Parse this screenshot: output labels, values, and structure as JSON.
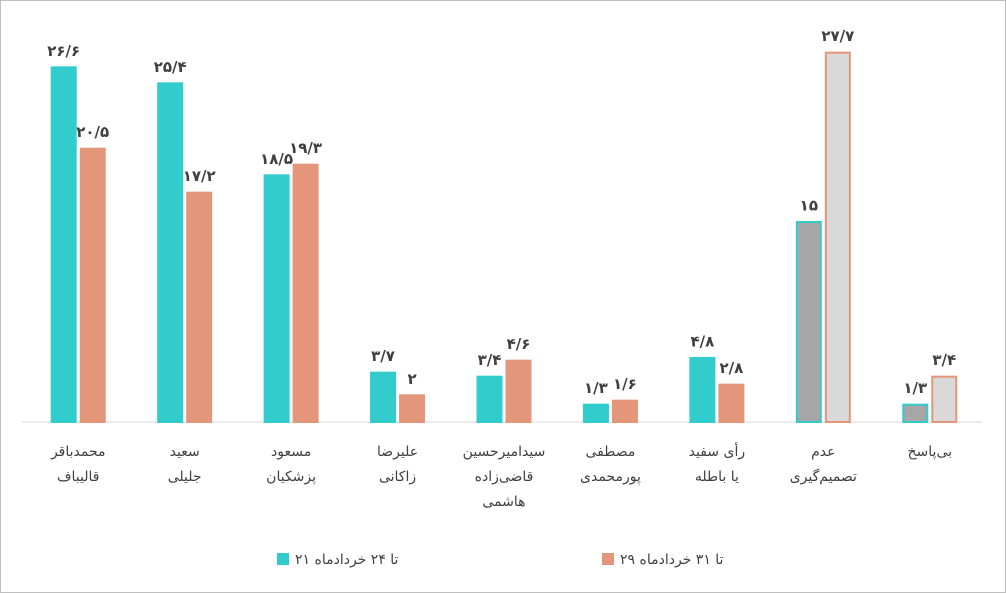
{
  "chart_data": {
    "type": "bar",
    "categories": [
      "محمدباقر\nقالیباف",
      "سعید\nجلیلی",
      "مسعود\nپزشکیان",
      "علیرضا\nزاکانی",
      "سیدامیرحسین\nقاضی‌زاده\nهاشمی",
      "مصطفی\nپورمحمدی",
      "رأی سفید\nیا باطله",
      "عدم\nتصمیم‌گیری",
      "بی‌پاسخ"
    ],
    "series": [
      {
        "name": "۲۱ تا ۲۴ خردادماه",
        "color": "#33cccc",
        "fills": [
          "#33cccc",
          "#33cccc",
          "#33cccc",
          "#33cccc",
          "#33cccc",
          "#33cccc",
          "#33cccc",
          "#a6a6a6",
          "#a6a6a6"
        ],
        "values": [
          26.6,
          25.4,
          18.5,
          3.7,
          3.4,
          1.3,
          4.8,
          15,
          1.3
        ],
        "value_labels": [
          "۲۶/۶",
          "۲۵/۴",
          "۱۸/۵",
          "۳/۷",
          "۳/۴",
          "۱/۳",
          "۴/۸",
          "۱۵",
          "۱/۳"
        ]
      },
      {
        "name": "۲۹ تا ۳۱ خردادماه",
        "color": "#e3967a",
        "fills": [
          "#e3967a",
          "#e3967a",
          "#e3967a",
          "#e3967a",
          "#e3967a",
          "#e3967a",
          "#e3967a",
          "#d9d9d9",
          "#d9d9d9"
        ],
        "values": [
          20.5,
          17.2,
          19.3,
          2,
          4.6,
          1.6,
          2.8,
          27.7,
          3.4
        ],
        "value_labels": [
          "۲۰/۵",
          "۱۷/۲",
          "۱۹/۳",
          "۲",
          "۴/۶",
          "۱/۶",
          "۲/۸",
          "۲۷/۷",
          "۳/۴"
        ]
      }
    ],
    "ylim": [
      0,
      30
    ],
    "legend": "bottom"
  }
}
